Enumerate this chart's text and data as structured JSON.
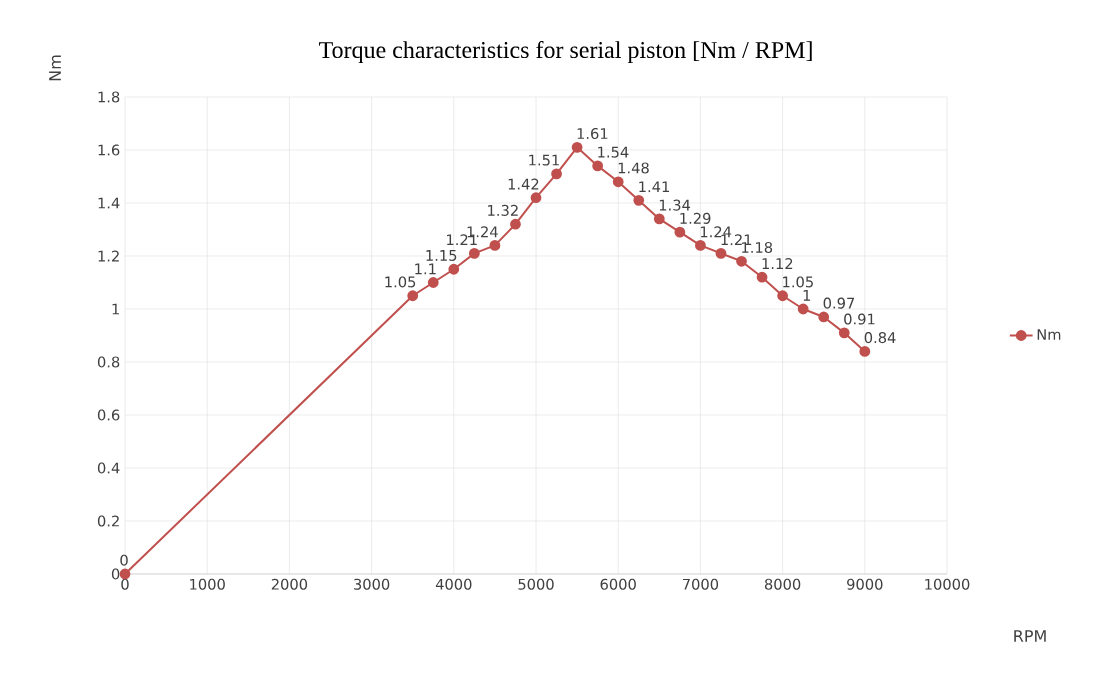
{
  "chart_data": {
    "type": "line",
    "title": "Torque characteristics for serial piston [Nm / RPM]",
    "xlabel": "RPM",
    "ylabel": "Nm",
    "series": [
      {
        "name": "Nm",
        "color": "#c0504d",
        "x": [
          0,
          3500,
          3750,
          4000,
          4250,
          4500,
          4750,
          5000,
          5250,
          5500,
          5750,
          6000,
          6250,
          6500,
          6750,
          7000,
          7250,
          7500,
          7750,
          8000,
          8250,
          8500,
          8750,
          9000
        ],
        "values": [
          0,
          1.05,
          1.1,
          1.15,
          1.21,
          1.24,
          1.32,
          1.42,
          1.51,
          1.61,
          1.54,
          1.48,
          1.41,
          1.34,
          1.29,
          1.24,
          1.21,
          1.18,
          1.12,
          1.05,
          1,
          0.97,
          0.91,
          0.84
        ]
      }
    ],
    "xlim": [
      0,
      10000
    ],
    "xticks": [
      0,
      1000,
      2000,
      3000,
      4000,
      5000,
      6000,
      7000,
      8000,
      9000,
      10000
    ],
    "ylim": [
      0,
      1.8
    ],
    "yticks": [
      0,
      0.2,
      0.4,
      0.6,
      0.8,
      1,
      1.2,
      1.4,
      1.6,
      1.8
    ],
    "grid": true,
    "legend": "right",
    "marker": "circle",
    "line_style": "solid",
    "data_labels": true
  }
}
